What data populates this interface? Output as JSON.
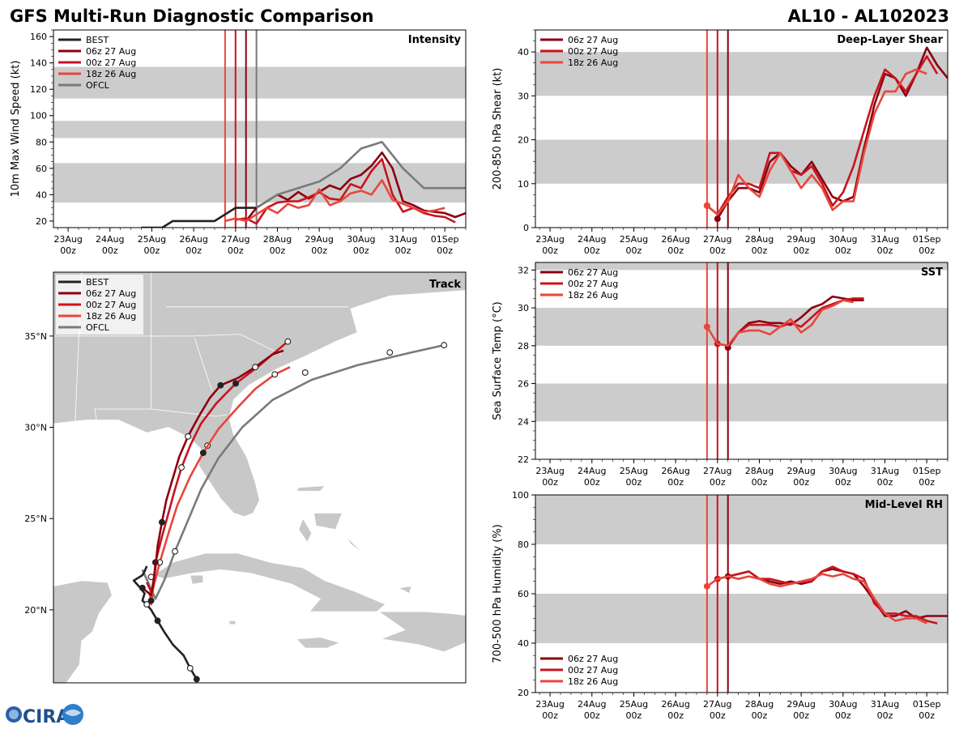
{
  "title_left": "GFS Multi-Run Diagnostic Comparison",
  "title_right": "AL10 - AL102023",
  "logo_text": "CIRA",
  "colors": {
    "BEST": "#222222",
    "06z 27 Aug": "#8b0010",
    "00z 27 Aug": "#c8141e",
    "18z 26 Aug": "#e8463c",
    "OFCL": "#7a7a7a",
    "band": "#cccccc",
    "land": "#c8c8c8"
  },
  "time_axis": {
    "labels": [
      "23Aug\n00z",
      "24Aug\n00z",
      "25Aug\n00z",
      "26Aug\n00z",
      "27Aug\n00z",
      "28Aug\n00z",
      "29Aug\n00z",
      "30Aug\n00z",
      "31Aug\n00z",
      "01Sep\n00z"
    ],
    "range_days": [
      -0.35,
      9.5
    ]
  },
  "chart_data": [
    {
      "type": "line",
      "name": "intensity",
      "panel_title": "Intensity",
      "ylabel": "10m Max Wind Speed (kt)",
      "ylim": [
        15,
        165
      ],
      "yticks": [
        20,
        40,
        60,
        80,
        100,
        120,
        140,
        160
      ],
      "bands": [
        [
          34,
          64
        ],
        [
          83,
          96
        ],
        [
          113,
          137
        ]
      ],
      "init_lines": [
        {
          "name": "18z 26 Aug",
          "x": 3.75
        },
        {
          "name": "06z 27 Aug",
          "x": 4.25
        },
        {
          "name": "00z 27 Aug",
          "x": 4.0
        },
        {
          "name": "OFCL",
          "x": 4.5
        }
      ],
      "legend": [
        "BEST",
        "06z 27 Aug",
        "00z 27 Aug",
        "18z 26 Aug",
        "OFCL"
      ],
      "series": [
        {
          "name": "BEST",
          "x": [
            1.75,
            2.0,
            2.25,
            2.5,
            2.75,
            3.0,
            3.25,
            3.5,
            3.75,
            4.0,
            4.25,
            4.5
          ],
          "values": [
            15,
            15,
            15,
            20,
            20,
            20,
            20,
            20,
            25,
            30,
            30,
            30
          ]
        },
        {
          "name": "06z 27 Aug",
          "x": [
            4.25,
            4.5,
            4.75,
            5.0,
            5.25,
            5.5,
            5.75,
            6.0,
            6.25,
            6.5,
            6.75,
            7.0,
            7.25,
            7.5,
            7.75,
            8.0,
            8.25,
            8.5,
            8.75,
            9.0,
            9.25,
            9.5
          ],
          "values": [
            20,
            30,
            35,
            40,
            36,
            42,
            37,
            42,
            47,
            44,
            52,
            55,
            62,
            72,
            60,
            35,
            32,
            28,
            27,
            26,
            23,
            26
          ]
        },
        {
          "name": "00z 27 Aug",
          "x": [
            4.0,
            4.25,
            4.5,
            4.75,
            5.0,
            5.25,
            5.5,
            5.75,
            6.0,
            6.25,
            6.5,
            6.75,
            7.0,
            7.25,
            7.5,
            7.75,
            8.0,
            8.25,
            8.5,
            8.75,
            9.0,
            9.25
          ],
          "values": [
            21,
            22,
            18,
            30,
            34,
            35,
            35,
            38,
            42,
            37,
            36,
            48,
            45,
            58,
            67,
            40,
            27,
            30,
            26,
            24,
            23,
            19
          ]
        },
        {
          "name": "18z 26 Aug",
          "x": [
            3.75,
            4.0,
            4.25,
            4.5,
            4.75,
            5.0,
            5.25,
            5.5,
            5.75,
            6.0,
            6.25,
            6.5,
            6.75,
            7.0,
            7.25,
            7.5,
            7.75,
            8.0,
            8.25,
            8.5,
            8.75,
            9.0
          ],
          "values": [
            20,
            22,
            20,
            25,
            30,
            26,
            33,
            30,
            32,
            44,
            32,
            35,
            41,
            43,
            40,
            51,
            36,
            33,
            30,
            27,
            28,
            30
          ]
        },
        {
          "name": "OFCL",
          "x": [
            4.5,
            5.0,
            6.0,
            6.5,
            7.0,
            7.5,
            8.0,
            8.5,
            9.0,
            9.5
          ],
          "values": [
            30,
            40,
            50,
            60,
            75,
            80,
            60,
            45,
            45,
            45
          ]
        }
      ]
    },
    {
      "type": "line",
      "name": "shear",
      "panel_title": "Deep-Layer Shear",
      "ylabel": "200-850 hPa Shear (kt)",
      "ylim": [
        0,
        45
      ],
      "yticks": [
        0,
        10,
        20,
        30,
        40
      ],
      "bands": [
        [
          10,
          20
        ],
        [
          30,
          40
        ]
      ],
      "init_lines": [
        {
          "name": "18z 26 Aug",
          "x": 3.75
        },
        {
          "name": "00z 27 Aug",
          "x": 4.0
        },
        {
          "name": "06z 27 Aug",
          "x": 4.25
        }
      ],
      "legend": [
        "06z 27 Aug",
        "00z 27 Aug",
        "18z 26 Aug"
      ],
      "series": [
        {
          "name": "06z 27 Aug",
          "x": [
            4.0,
            4.25,
            4.5,
            4.75,
            5.0,
            5.25,
            5.5,
            5.75,
            6.0,
            6.25,
            6.5,
            6.75,
            7.0,
            7.25,
            7.5,
            7.75,
            8.0,
            8.25,
            8.5,
            8.75,
            9.0,
            9.25,
            9.5
          ],
          "values": [
            2,
            6,
            9,
            9,
            8,
            15,
            17,
            14,
            12,
            15,
            11,
            7,
            6,
            7,
            18,
            28,
            35,
            34,
            30,
            35,
            41,
            37,
            34
          ]
        },
        {
          "name": "00z 27 Aug",
          "x": [
            3.75,
            4.0,
            4.25,
            4.5,
            4.75,
            5.0,
            5.25,
            5.5,
            5.75,
            6.0,
            6.25,
            6.5,
            6.75,
            7.0,
            7.25,
            7.5,
            7.75,
            8.0,
            8.25,
            8.5,
            8.75,
            9.0,
            9.25
          ],
          "values": [
            5,
            3,
            7,
            10,
            10,
            9,
            17,
            17,
            13,
            12,
            14,
            10,
            5,
            8,
            14,
            22,
            30,
            36,
            34,
            31,
            35,
            39,
            35
          ]
        },
        {
          "name": "18z 26 Aug",
          "x": [
            3.75,
            4.0,
            4.25,
            4.5,
            4.75,
            5.0,
            5.25,
            5.5,
            5.75,
            6.0,
            6.25,
            6.5,
            6.75,
            7.0,
            7.25,
            7.5,
            7.75,
            8.0,
            8.25,
            8.5,
            8.75,
            9.0
          ],
          "values": [
            5,
            3,
            6,
            12,
            9,
            7,
            13,
            17,
            13,
            9,
            12,
            9,
            4,
            6,
            6,
            17,
            26,
            31,
            31,
            35,
            36,
            35
          ]
        }
      ]
    },
    {
      "type": "line",
      "name": "sst",
      "panel_title": "SST",
      "ylabel": "Sea Surface Temp (°C)",
      "ylim": [
        22,
        32.4
      ],
      "yticks": [
        22,
        24,
        26,
        28,
        30,
        32
      ],
      "bands": [
        [
          24,
          26
        ],
        [
          28,
          30
        ],
        [
          32,
          32.4
        ]
      ],
      "init_lines": [
        {
          "name": "18z 26 Aug",
          "x": 3.75
        },
        {
          "name": "00z 27 Aug",
          "x": 4.0
        },
        {
          "name": "06z 27 Aug",
          "x": 4.25
        }
      ],
      "legend": [
        "06z 27 Aug",
        "00z 27 Aug",
        "18z 26 Aug"
      ],
      "series": [
        {
          "name": "06z 27 Aug",
          "x": [
            4.25,
            4.5,
            4.75,
            5.0,
            5.25,
            5.5,
            5.75,
            6.0,
            6.25,
            6.5,
            6.75,
            7.0,
            7.25,
            7.5
          ],
          "values": [
            27.9,
            28.7,
            29.2,
            29.3,
            29.2,
            29.2,
            29.1,
            29.5,
            30.0,
            30.2,
            30.6,
            30.5,
            30.4,
            30.4
          ]
        },
        {
          "name": "00z 27 Aug",
          "x": [
            4.0,
            4.25,
            4.5,
            4.75,
            5.0,
            5.25,
            5.5,
            5.75,
            6.0,
            6.25,
            6.5,
            6.75,
            7.0,
            7.25,
            7.5
          ],
          "values": [
            28.1,
            28.0,
            28.7,
            29.1,
            29.1,
            29.1,
            29.0,
            29.2,
            29.0,
            29.5,
            30.0,
            30.2,
            30.4,
            30.5,
            30.5
          ]
        },
        {
          "name": "18z 26 Aug",
          "x": [
            3.75,
            4.0,
            4.25,
            4.5,
            4.75,
            5.0,
            5.25,
            5.5,
            5.75,
            6.0,
            6.25,
            6.5,
            6.75,
            7.0,
            7.25
          ],
          "values": [
            29.0,
            28.1,
            28.0,
            28.7,
            28.8,
            28.8,
            28.6,
            29.0,
            29.4,
            28.7,
            29.1,
            29.9,
            30.1,
            30.4,
            30.3
          ]
        }
      ]
    },
    {
      "type": "line",
      "name": "rh",
      "panel_title": "Mid-Level RH",
      "ylabel": "700-500 hPa Humidity (%)",
      "ylim": [
        20,
        100
      ],
      "yticks": [
        20,
        40,
        60,
        80,
        100
      ],
      "bands": [
        [
          40,
          60
        ],
        [
          80,
          100
        ]
      ],
      "init_lines": [
        {
          "name": "18z 26 Aug",
          "x": 3.75
        },
        {
          "name": "00z 27 Aug",
          "x": 4.0
        },
        {
          "name": "06z 27 Aug",
          "x": 4.25
        }
      ],
      "legend": [
        "06z 27 Aug",
        "00z 27 Aug",
        "18z 26 Aug"
      ],
      "series": [
        {
          "name": "06z 27 Aug",
          "x": [
            4.25,
            4.5,
            4.75,
            5.0,
            5.25,
            5.5,
            5.75,
            6.0,
            6.25,
            6.5,
            6.75,
            7.0,
            7.25,
            7.5,
            7.75,
            8.0,
            8.25,
            8.5,
            8.75,
            9.0,
            9.25,
            9.5
          ],
          "values": [
            67,
            68,
            69,
            66,
            65,
            64,
            65,
            64,
            65,
            69,
            70,
            69,
            68,
            63,
            57,
            51,
            51,
            53,
            50,
            51,
            51,
            51
          ]
        },
        {
          "name": "00z 27 Aug",
          "x": [
            4.0,
            4.25,
            4.5,
            4.75,
            5.0,
            5.25,
            5.5,
            5.75,
            6.0,
            6.25,
            6.5,
            6.75,
            7.0,
            7.25,
            7.5,
            7.75,
            8.0,
            8.25,
            8.5,
            8.75,
            9.0,
            9.25
          ],
          "values": [
            66,
            67,
            68,
            69,
            66,
            66,
            65,
            64,
            65,
            65,
            69,
            71,
            69,
            68,
            66,
            56,
            52,
            52,
            51,
            51,
            49,
            48
          ]
        },
        {
          "name": "18z 26 Aug",
          "x": [
            3.75,
            4.0,
            4.25,
            4.5,
            4.75,
            5.0,
            5.25,
            5.5,
            5.75,
            6.0,
            6.25,
            6.5,
            6.75,
            7.0,
            7.25,
            7.5,
            7.75,
            8.0,
            8.25,
            8.5,
            8.75,
            9.0
          ],
          "values": [
            63,
            66,
            67,
            66,
            67,
            66,
            64,
            63,
            64,
            65,
            66,
            68,
            67,
            68,
            66,
            65,
            58,
            52,
            49,
            50,
            50,
            48
          ]
        }
      ]
    },
    {
      "type": "scatter",
      "name": "track",
      "panel_title": "Track",
      "lon_range": [
        -89.5,
        -70.5
      ],
      "lat_range": [
        16.0,
        38.5
      ],
      "lat_ticks": [
        {
          "lat": 20,
          "label": "20°N"
        },
        {
          "lat": 25,
          "label": "25°N"
        },
        {
          "lat": 30,
          "label": "30°N"
        },
        {
          "lat": 35,
          "label": "35°N"
        }
      ],
      "legend": [
        "BEST",
        "06z 27 Aug",
        "00z 27 Aug",
        "18z 26 Aug",
        "OFCL"
      ],
      "series": [
        {
          "name": "BEST",
          "lons": [
            -82.9,
            -83.2,
            -83.5,
            -84.0,
            -84.4,
            -84.7,
            -84.9,
            -85.0,
            -85.2,
            -85.4,
            -85.3,
            -85.5,
            -85.8,
            -85.4,
            -85.3,
            -85.2
          ],
          "lats": [
            16.2,
            16.8,
            17.5,
            18.1,
            18.8,
            19.4,
            19.8,
            20.0,
            20.3,
            20.5,
            20.9,
            21.2,
            21.6,
            21.9,
            22.1,
            22.4
          ],
          "dots_lons": [
            -82.9,
            -83.2,
            -84.7,
            -85.2,
            -85.4
          ],
          "dots_lats": [
            16.2,
            16.8,
            19.4,
            20.3,
            21.2
          ]
        },
        {
          "name": "06z 27 Aug",
          "lons": [
            -85.5,
            -85.2,
            -85.0,
            -84.9,
            -84.8,
            -84.7,
            -84.5,
            -84.3,
            -84.0,
            -83.7,
            -83.3,
            -82.8,
            -82.3,
            -81.8,
            -81.0,
            -80.2,
            -79.4,
            -78.9
          ],
          "lats": [
            21.3,
            21.0,
            20.8,
            21.5,
            22.3,
            23.5,
            24.8,
            26.0,
            27.2,
            28.4,
            29.5,
            30.6,
            31.6,
            32.3,
            32.7,
            33.3,
            34.0,
            34.2
          ],
          "dots_lons": [
            -84.5,
            -83.3,
            -81.8,
            -80.2
          ],
          "dots_lats": [
            24.8,
            29.5,
            32.3,
            33.3
          ]
        },
        {
          "name": "00z 27 Aug",
          "lons": [
            -85.2,
            -85.0,
            -84.9,
            -84.8,
            -84.5,
            -84.2,
            -83.9,
            -83.6,
            -83.2,
            -82.7,
            -82.0,
            -81.1,
            -80.1,
            -79.2,
            -78.7
          ],
          "lats": [
            21.5,
            21.0,
            21.3,
            22.6,
            24.0,
            25.3,
            26.6,
            27.8,
            29.0,
            30.2,
            31.3,
            32.4,
            33.3,
            34.2,
            34.7
          ],
          "dots_lons": [
            -84.8,
            -83.6,
            -81.1,
            -78.7
          ],
          "dots_lats": [
            22.6,
            27.8,
            32.4,
            34.7
          ]
        },
        {
          "name": "18z 26 Aug",
          "lons": [
            -85.1,
            -85.0,
            -85.0,
            -84.9,
            -84.6,
            -84.2,
            -83.8,
            -83.2,
            -82.6,
            -81.9,
            -81.0,
            -80.2,
            -79.3,
            -78.6
          ],
          "lats": [
            21.0,
            20.5,
            20.3,
            21.2,
            22.6,
            24.2,
            25.7,
            27.3,
            28.6,
            29.9,
            31.1,
            32.1,
            32.9,
            33.3
          ],
          "dots_lons": [
            -85.0,
            -84.6,
            -82.6,
            -79.3
          ],
          "dots_lats": [
            20.5,
            22.6,
            28.6,
            32.9
          ]
        },
        {
          "name": "OFCL",
          "lons": [
            -85.4,
            -84.8,
            -84.4,
            -83.9,
            -83.3,
            -82.7,
            -81.9,
            -80.8,
            -79.4,
            -77.6,
            -75.5,
            -73.0,
            -71.5
          ],
          "lats": [
            22.2,
            20.6,
            21.6,
            23.2,
            24.9,
            26.6,
            28.3,
            30.0,
            31.5,
            32.6,
            33.4,
            34.1,
            34.5
          ],
          "dots_lons": [
            -85.0,
            -83.9,
            -82.4,
            -77.9,
            -74.0,
            -71.5
          ],
          "dots_lats": [
            21.8,
            23.2,
            29.0,
            33.0,
            34.1,
            34.5
          ]
        }
      ]
    }
  ]
}
